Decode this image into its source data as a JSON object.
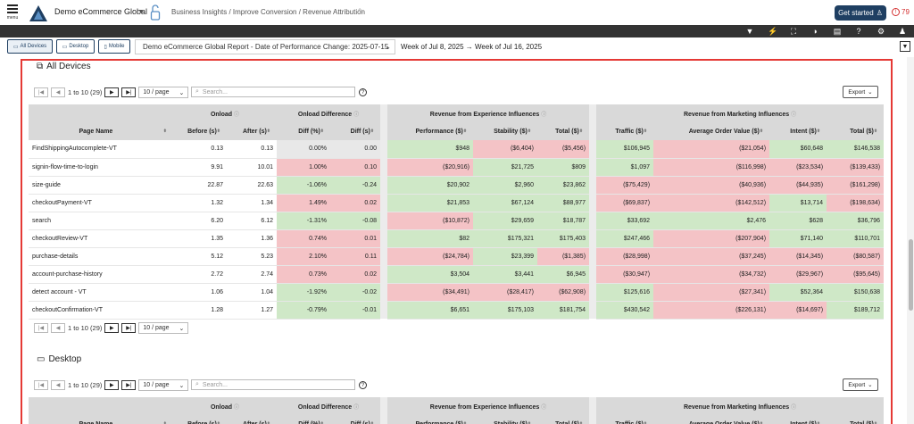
{
  "header": {
    "menu_label": "menu",
    "org_name": "Demo eCommerce Global",
    "breadcrumb": "Business Insights / Improve Conversion / Revenue Attribution",
    "get_started": "Get started",
    "alert_count": "79"
  },
  "toolbar": {
    "icons": [
      "filter-icon",
      "bolt-icon",
      "fullscreen-icon",
      "contrast-icon",
      "report-icon",
      "help-icon",
      "gear-icon",
      "user-icon"
    ]
  },
  "filters": {
    "devices": [
      "All Devices",
      "Desktop",
      "Mobile"
    ],
    "report": "Demo eCommerce Global Report - Date of Performance Change: 2025-07-15",
    "week_range": "Week of Jul 8, 2025 → Week of Jul 16, 2025"
  },
  "sections": [
    {
      "title": "All Devices",
      "pager_text": "1 to 10 (29)",
      "per_page": "10 / page",
      "search_placeholder": "Search...",
      "export": "Export"
    },
    {
      "title": "Desktop",
      "pager_text": "1 to 10 (29)",
      "per_page": "10 / page",
      "search_placeholder": "Search...",
      "export": "Export"
    }
  ],
  "table": {
    "groups": {
      "onload": "Onload",
      "onload_diff": "Onload Difference",
      "exp": "Revenue from Experience Influences",
      "mkt": "Revenue from Marketing Influences"
    },
    "columns": [
      "Page Name",
      "Before (s)",
      "After (s)",
      "Diff (%)",
      "Diff (s)",
      "Performance ($)",
      "Stability ($)",
      "Total ($)",
      "Traffic ($)",
      "Average Order Value ($)",
      "Intent ($)",
      "Total ($)"
    ],
    "rows": [
      {
        "name": "FindShippingAutocomplete-VT",
        "before": "0.13",
        "after": "0.13",
        "dpct": "0.00%",
        "ds": "0.00",
        "perf": "$948",
        "stab": "($6,404)",
        "etot": "($5,456)",
        "traf": "$106,945",
        "aov": "($21,054)",
        "intent": "$60,648",
        "mtot": "$146,538",
        "c": [
          "n",
          "n",
          "g",
          "r",
          "r",
          "g",
          "r",
          "g",
          "g"
        ]
      },
      {
        "name": "signin-flow-time-to-login",
        "before": "9.91",
        "after": "10.01",
        "dpct": "1.00%",
        "ds": "0.10",
        "perf": "($20,916)",
        "stab": "$21,725",
        "etot": "$809",
        "traf": "$1,097",
        "aov": "($116,998)",
        "intent": "($23,534)",
        "mtot": "($139,433)",
        "c": [
          "r",
          "r",
          "r",
          "g",
          "g",
          "g",
          "r",
          "r",
          "r"
        ]
      },
      {
        "name": "size-guide",
        "before": "22.87",
        "after": "22.63",
        "dpct": "-1.06%",
        "ds": "-0.24",
        "perf": "$20,902",
        "stab": "$2,960",
        "etot": "$23,862",
        "traf": "($75,429)",
        "aov": "($40,936)",
        "intent": "($44,935)",
        "mtot": "($161,298)",
        "c": [
          "g",
          "g",
          "g",
          "g",
          "g",
          "r",
          "r",
          "r",
          "r"
        ]
      },
      {
        "name": "checkoutPayment-VT",
        "before": "1.32",
        "after": "1.34",
        "dpct": "1.49%",
        "ds": "0.02",
        "perf": "$21,853",
        "stab": "$67,124",
        "etot": "$88,977",
        "traf": "($69,837)",
        "aov": "($142,512)",
        "intent": "$13,714",
        "mtot": "($198,634)",
        "c": [
          "r",
          "r",
          "g",
          "g",
          "g",
          "r",
          "r",
          "g",
          "r"
        ]
      },
      {
        "name": "search",
        "before": "6.20",
        "after": "6.12",
        "dpct": "-1.31%",
        "ds": "-0.08",
        "perf": "($10,872)",
        "stab": "$29,659",
        "etot": "$18,787",
        "traf": "$33,692",
        "aov": "$2,476",
        "intent": "$628",
        "mtot": "$36,796",
        "c": [
          "g",
          "g",
          "r",
          "g",
          "g",
          "g",
          "g",
          "g",
          "g"
        ]
      },
      {
        "name": "checkoutReview-VT",
        "before": "1.35",
        "after": "1.36",
        "dpct": "0.74%",
        "ds": "0.01",
        "perf": "$82",
        "stab": "$175,321",
        "etot": "$175,403",
        "traf": "$247,466",
        "aov": "($207,904)",
        "intent": "$71,140",
        "mtot": "$110,701",
        "c": [
          "r",
          "r",
          "g",
          "g",
          "g",
          "g",
          "r",
          "g",
          "g"
        ]
      },
      {
        "name": "purchase-details",
        "before": "5.12",
        "after": "5.23",
        "dpct": "2.10%",
        "ds": "0.11",
        "perf": "($24,784)",
        "stab": "$23,399",
        "etot": "($1,385)",
        "traf": "($28,998)",
        "aov": "($37,245)",
        "intent": "($14,345)",
        "mtot": "($80,587)",
        "c": [
          "r",
          "r",
          "r",
          "g",
          "r",
          "r",
          "r",
          "r",
          "r"
        ]
      },
      {
        "name": "account-purchase-history",
        "before": "2.72",
        "after": "2.74",
        "dpct": "0.73%",
        "ds": "0.02",
        "perf": "$3,504",
        "stab": "$3,441",
        "etot": "$6,945",
        "traf": "($30,947)",
        "aov": "($34,732)",
        "intent": "($29,967)",
        "mtot": "($95,645)",
        "c": [
          "r",
          "r",
          "g",
          "g",
          "g",
          "r",
          "r",
          "r",
          "r"
        ]
      },
      {
        "name": "detect account - VT",
        "before": "1.06",
        "after": "1.04",
        "dpct": "-1.92%",
        "ds": "-0.02",
        "perf": "($34,491)",
        "stab": "($28,417)",
        "etot": "($62,908)",
        "traf": "$125,616",
        "aov": "($27,341)",
        "intent": "$52,364",
        "mtot": "$150,638",
        "c": [
          "g",
          "g",
          "r",
          "r",
          "r",
          "g",
          "r",
          "g",
          "g"
        ]
      },
      {
        "name": "checkoutConfirmation-VT",
        "before": "1.28",
        "after": "1.27",
        "dpct": "-0.79%",
        "ds": "-0.01",
        "perf": "$6,651",
        "stab": "$175,103",
        "etot": "$181,754",
        "traf": "$430,542",
        "aov": "($226,131)",
        "intent": "($14,697)",
        "mtot": "$189,712",
        "c": [
          "g",
          "g",
          "g",
          "g",
          "g",
          "g",
          "r",
          "r",
          "g"
        ]
      }
    ]
  },
  "colors": {
    "accent": "#1f3f62",
    "positive": "#cfe8c7",
    "negative": "#f4c3c6",
    "frame": "#e53935"
  }
}
